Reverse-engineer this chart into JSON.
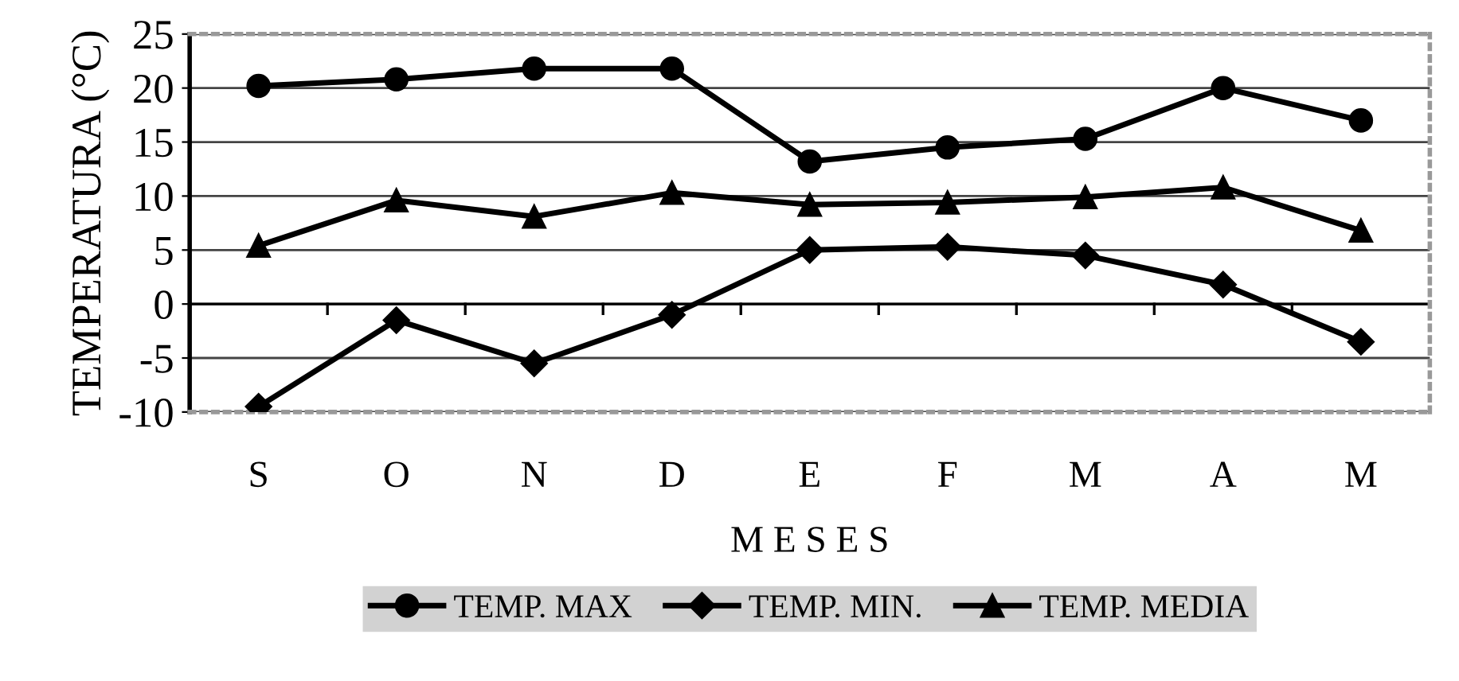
{
  "chart_data": {
    "type": "line",
    "xlabel": "M E S E S",
    "ylabel": "TEMPERATURA (°C)",
    "categories": [
      "S",
      "O",
      "N",
      "D",
      "E",
      "F",
      "M",
      "A",
      "M"
    ],
    "series": [
      {
        "name": "TEMP. MAX",
        "color": "#000000",
        "marker": "circle",
        "values": [
          20.2,
          20.8,
          21.8,
          21.8,
          13.2,
          14.5,
          15.3,
          20.0,
          17.0
        ]
      },
      {
        "name": "TEMP. MIN.",
        "color": "#000000",
        "marker": "diamond",
        "values": [
          -9.5,
          -1.5,
          -5.5,
          -1.0,
          5.0,
          5.3,
          4.5,
          1.8,
          -3.5
        ]
      },
      {
        "name": "TEMP. MEDIA",
        "color": "#000000",
        "marker": "triangle",
        "values": [
          5.4,
          9.6,
          8.1,
          10.3,
          9.2,
          9.4,
          9.9,
          10.8,
          6.8
        ]
      }
    ],
    "ylim": [
      -10,
      25
    ],
    "yticks": [
      -10,
      -5,
      0,
      5,
      10,
      15,
      20,
      25
    ],
    "grid": "y",
    "legend": "bottom",
    "line_style": "solid"
  }
}
